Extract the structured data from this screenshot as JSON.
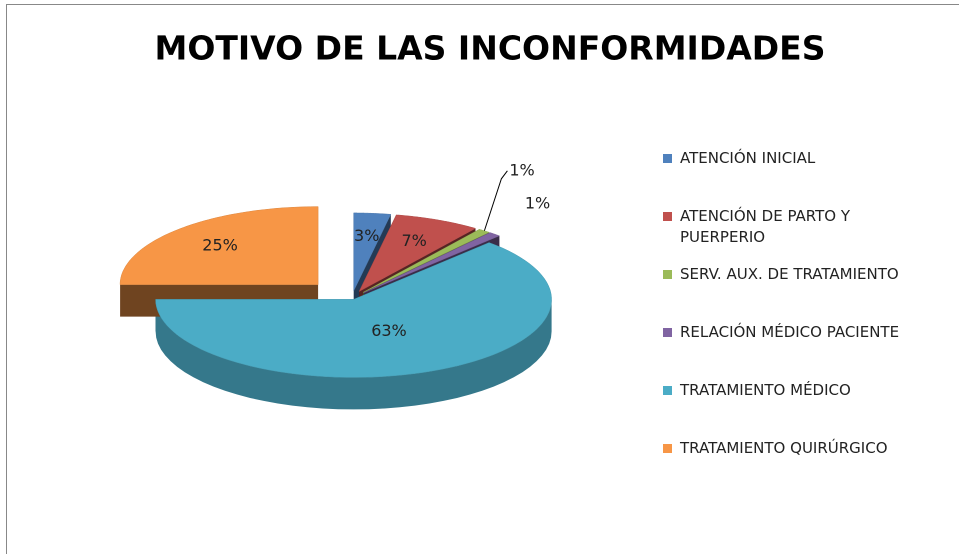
{
  "chart_data": {
    "type": "pie3d",
    "title": "MOTIVO DE LAS INCONFORMIDADES",
    "categories": [
      "ATENCIÓN INICIAL",
      "ATENCIÓN DE PARTO Y PUERPERIO",
      "SERV. AUX. DE TRATAMIENTO",
      "RELACIÓN MÉDICO PACIENTE",
      "TRATAMIENTO MÉDICO",
      "TRATAMIENTO QUIRÚRGICO"
    ],
    "values": [
      3,
      7,
      1,
      1,
      63,
      25
    ],
    "value_labels": [
      "3%",
      "7%",
      "1%",
      "1%",
      "63%",
      "25%"
    ],
    "colors": [
      "#4f81bd",
      "#c0504d",
      "#9bbb59",
      "#8064a2",
      "#4bacc6",
      "#f79646"
    ],
    "legend": "right"
  }
}
